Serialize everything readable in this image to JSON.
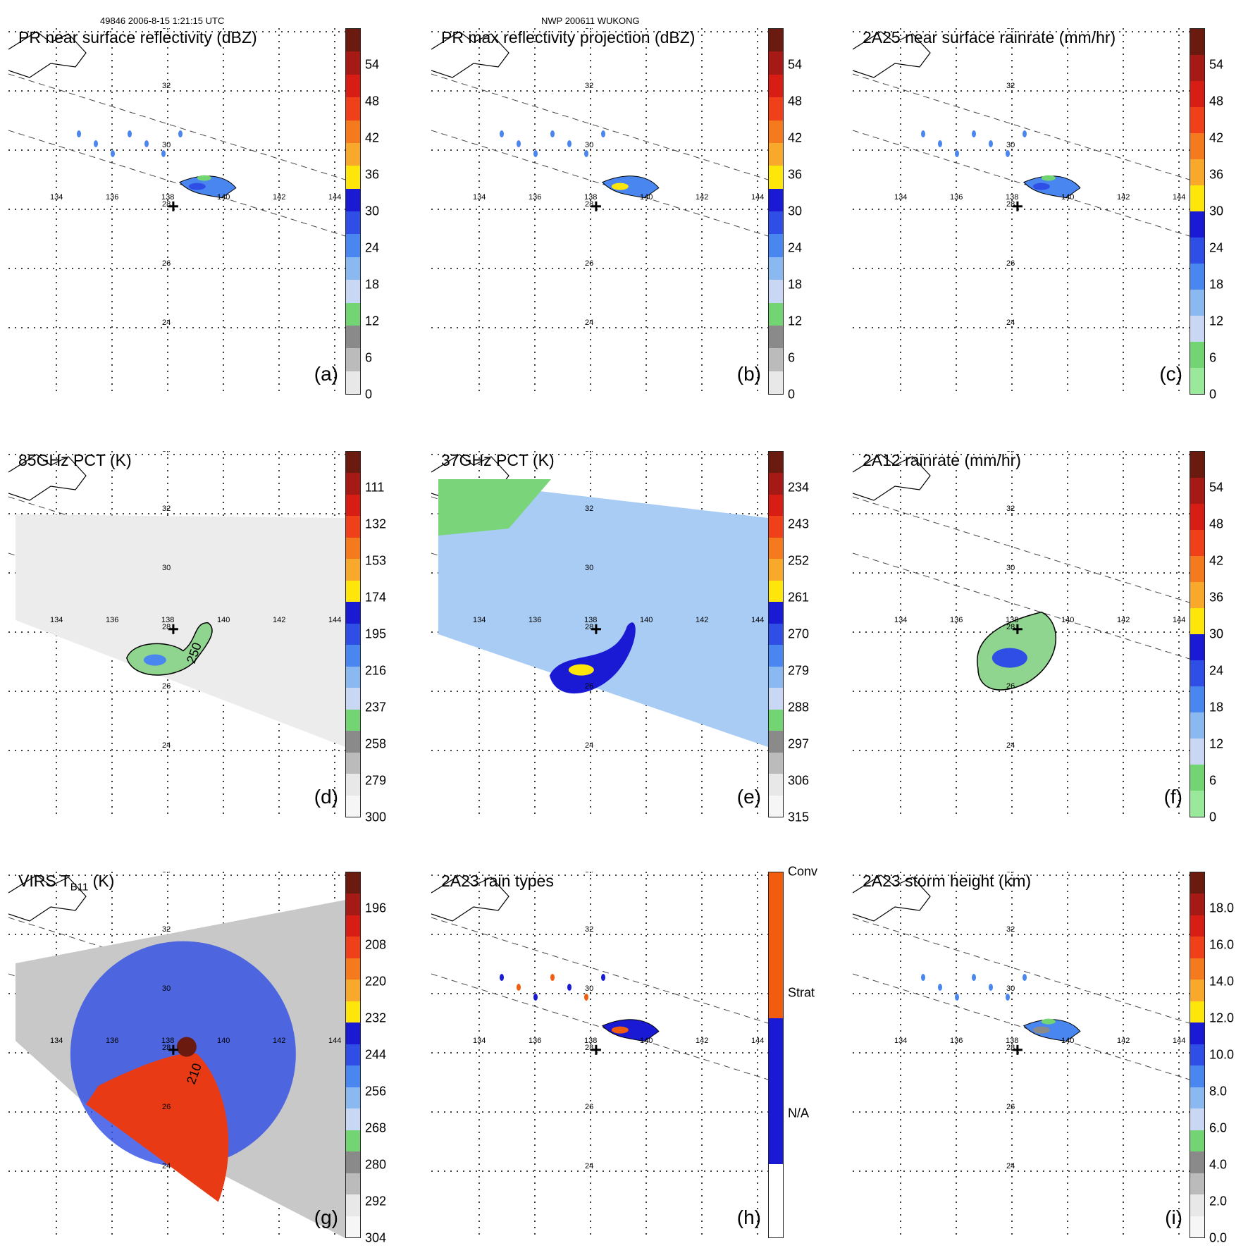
{
  "header": {
    "orbit_time": "49846 2006-8-15 1:21:15 UTC",
    "storm_id": "NWP 200611 WUKONG"
  },
  "map": {
    "lat_labels": [
      "34",
      "32",
      "30",
      "28",
      "26",
      "24"
    ],
    "lon_labels": [
      "134",
      "136",
      "138",
      "140",
      "142",
      "144"
    ]
  },
  "panels": [
    {
      "id": "a",
      "title": "PR near surface reflectivity (dBZ)",
      "label": "(a)",
      "cb_ticks": [
        "54",
        "48",
        "42",
        "36",
        "30",
        "24",
        "18",
        "12",
        "6",
        "0"
      ],
      "contour_label": ""
    },
    {
      "id": "b",
      "title": "PR max reflectivity projection (dBZ)",
      "label": "(b)",
      "cb_ticks": [
        "54",
        "48",
        "42",
        "36",
        "30",
        "24",
        "18",
        "12",
        "6",
        "0"
      ],
      "contour_label": ""
    },
    {
      "id": "c",
      "title": "2A25 near surface rainrate (mm/hr)",
      "label": "(c)",
      "cb_ticks": [
        "54",
        "48",
        "42",
        "36",
        "30",
        "24",
        "18",
        "12",
        "6",
        "0"
      ],
      "contour_label": ""
    },
    {
      "id": "d",
      "title": "85GHz PCT (K)",
      "label": "(d)",
      "cb_ticks": [
        "111",
        "132",
        "153",
        "174",
        "195",
        "216",
        "237",
        "258",
        "279",
        "300"
      ],
      "contour_label": "250"
    },
    {
      "id": "e",
      "title": "37GHz PCT (K)",
      "label": "(e)",
      "cb_ticks": [
        "234",
        "243",
        "252",
        "261",
        "270",
        "279",
        "288",
        "297",
        "306",
        "315"
      ],
      "contour_label": ""
    },
    {
      "id": "f",
      "title": "2A12 rainrate (mm/hr)",
      "label": "(f)",
      "cb_ticks": [
        "54",
        "48",
        "42",
        "36",
        "30",
        "24",
        "18",
        "12",
        "6",
        "0"
      ],
      "contour_label": ""
    },
    {
      "id": "g",
      "title": "VIRS T",
      "title_sub": "B11",
      "title_suffix": " (K)",
      "label": "(g)",
      "cb_ticks": [
        "196",
        "208",
        "220",
        "232",
        "244",
        "256",
        "268",
        "280",
        "292",
        "304"
      ],
      "contour_label": "210"
    },
    {
      "id": "h",
      "title": "2A23 rain types",
      "label": "(h)",
      "cb_ticks": [
        "Conv",
        "Strat",
        "N/A"
      ],
      "contour_label": ""
    },
    {
      "id": "i",
      "title": "2A23 storm height (km)",
      "label": "(i)",
      "cb_ticks": [
        "18.0",
        "16.0",
        "14.0",
        "12.0",
        "10.0",
        "8.0",
        "6.0",
        "4.0",
        "2.0",
        "0.0"
      ],
      "contour_label": ""
    }
  ]
}
